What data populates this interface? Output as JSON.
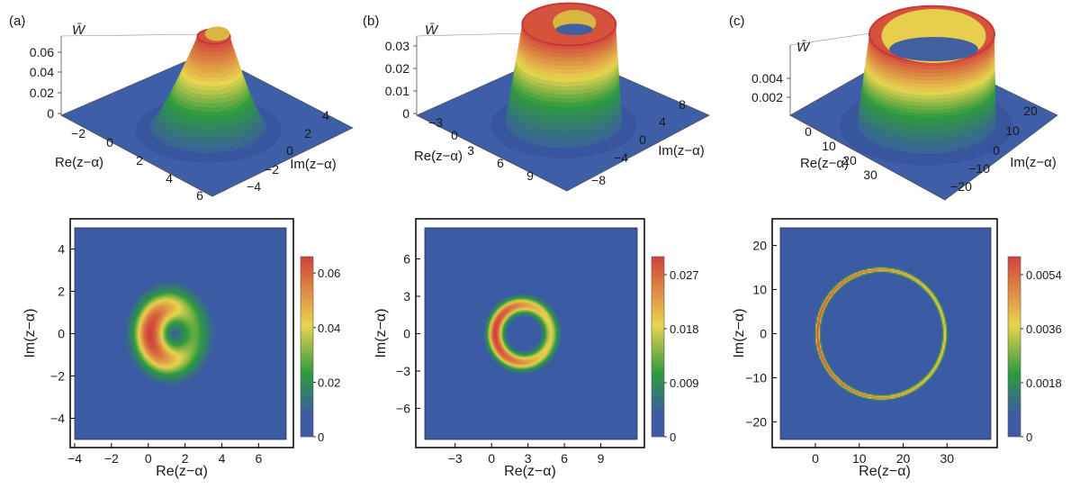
{
  "colormap": [
    "#3b5ba5",
    "#2e9a3e",
    "#e8d44f",
    "#d2413a"
  ],
  "frame_color": "#000000",
  "chart_data": [
    {
      "panel_label": "(a)",
      "type": "surface3d",
      "title": "",
      "zlabel": "W̄",
      "xlabel": "Re(z−α)",
      "ylabel": "Im(z−α)",
      "x_ticks": [
        "−2",
        "0",
        "2",
        "4",
        "6"
      ],
      "y_ticks": [
        "4",
        "2",
        "0",
        "−2",
        "−4"
      ],
      "z_ticks": [
        "0",
        "0.02",
        "0.04",
        "0.06"
      ],
      "xlim": [
        -3,
        7
      ],
      "ylim": [
        -5,
        5
      ],
      "zlim": [
        0,
        0.065
      ],
      "peak": 0.065,
      "ring": {
        "center_x": 1.3,
        "center_y": 0,
        "radius": 1.3,
        "width": 1.0,
        "bias": 0.35
      },
      "surface_shape": "peak with shallow crater"
    },
    {
      "panel_label": "(b)",
      "type": "surface3d",
      "title": "",
      "zlabel": "W̄",
      "xlabel": "Re(z−α)",
      "ylabel": "Im(z−α)",
      "x_ticks": [
        "−3",
        "0",
        "3",
        "6",
        "9"
      ],
      "y_ticks": [
        "8",
        "4",
        "0",
        "−4",
        "−8"
      ],
      "z_ticks": [
        "0",
        "0.01",
        "0.02",
        "0.03"
      ],
      "xlim": [
        -4,
        12
      ],
      "ylim": [
        -8,
        8
      ],
      "zlim": [
        0,
        0.03
      ],
      "peak": 0.028,
      "ring": {
        "center_x": 3,
        "center_y": 0,
        "radius": 2.5,
        "width": 1.0,
        "bias": 0.25
      },
      "surface_shape": "ring"
    },
    {
      "panel_label": "(c)",
      "type": "surface3d",
      "title": "",
      "zlabel": "W̄",
      "xlabel": "Re(z−α)",
      "ylabel": "Im(z−α)",
      "x_ticks": [
        "0",
        "10",
        "20",
        "30"
      ],
      "y_ticks": [
        "20",
        "10",
        "0",
        "−10",
        "−20"
      ],
      "z_ticks": [
        "0.002",
        "0.004"
      ],
      "xlim": [
        -5,
        37
      ],
      "ylim": [
        -22,
        22
      ],
      "zlim": [
        0,
        0.0056
      ],
      "peak": 0.0056,
      "ring": {
        "center_x": 15,
        "center_y": 0,
        "radius": 14.5,
        "width": 0.9,
        "bias": 0.15
      },
      "surface_shape": "thin ring wall"
    },
    {
      "panel_label": "",
      "type": "heatmap",
      "title": "",
      "xlabel": "Re(z−α)",
      "ylabel": "Im(z−α)",
      "xlim": [
        -4,
        7.5
      ],
      "ylim": [
        -5,
        5
      ],
      "x_ticks": [
        -4,
        -2,
        0,
        2,
        4,
        6
      ],
      "y_ticks": [
        4,
        2,
        0,
        -2,
        -4
      ],
      "tick_labels_x": [
        "−4",
        "−2",
        "0",
        "2",
        "4",
        "6"
      ],
      "tick_labels_y": [
        "4",
        "2",
        "0",
        "−2",
        "−4"
      ],
      "colorbar_ticks": [
        0,
        0.02,
        0.04,
        0.06
      ],
      "colorbar_tick_labels": [
        "0",
        "0.02",
        "0.04",
        "0.06"
      ],
      "colorbar_max": 0.066,
      "ring": {
        "center_x": 1.3,
        "center_y": 0,
        "radius": 1.2,
        "width": 0.95,
        "bias": 0.35
      }
    },
    {
      "panel_label": "",
      "type": "heatmap",
      "title": "",
      "xlabel": "Re(z−α)",
      "ylabel": "Im(z−α)",
      "xlim": [
        -5.5,
        12
      ],
      "ylim": [
        -8.5,
        8.5
      ],
      "x_ticks": [
        -3,
        0,
        3,
        6,
        9
      ],
      "y_ticks": [
        6,
        3,
        0,
        -3,
        -6
      ],
      "tick_labels_x": [
        "−3",
        "0",
        "3",
        "6",
        "9"
      ],
      "tick_labels_y": [
        "6",
        "3",
        "0",
        "−3",
        "−6"
      ],
      "colorbar_ticks": [
        0,
        0.009,
        0.018,
        0.027
      ],
      "colorbar_tick_labels": [
        "0",
        "0.009",
        "0.018",
        "0.027"
      ],
      "colorbar_max": 0.03,
      "ring": {
        "center_x": 2.6,
        "center_y": 0,
        "radius": 2.3,
        "width": 0.7,
        "bias": 0.22
      }
    },
    {
      "panel_label": "",
      "type": "heatmap",
      "title": "",
      "xlabel": "Re(z−α)",
      "ylabel": "Im(z−α)",
      "xlim": [
        -8,
        40
      ],
      "ylim": [
        -24,
        24
      ],
      "x_ticks": [
        0,
        10,
        20,
        30
      ],
      "y_ticks": [
        20,
        10,
        0,
        -10,
        -20
      ],
      "tick_labels_x": [
        "0",
        "10",
        "20",
        "30"
      ],
      "tick_labels_y": [
        "20",
        "10",
        "0",
        "−10",
        "−20"
      ],
      "colorbar_ticks": [
        0,
        0.0018,
        0.0036,
        0.0054
      ],
      "colorbar_tick_labels": [
        "0",
        "0.0018",
        "0.0036",
        "0.0054"
      ],
      "colorbar_max": 0.006,
      "ring": {
        "center_x": 15,
        "center_y": 0,
        "radius": 14.5,
        "width": 0.55,
        "bias": 0.15
      }
    }
  ]
}
